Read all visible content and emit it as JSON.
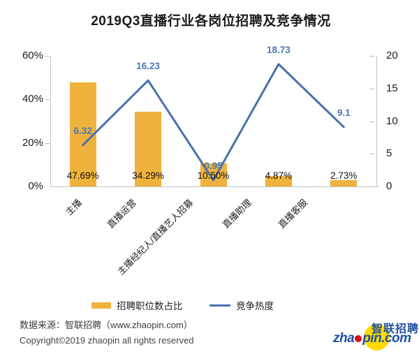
{
  "chart_data": {
    "type": "bar+line combo",
    "title": "2019Q3直播行业各岗位招聘及竞争情况",
    "categories": [
      "主播",
      "直播运营",
      "主播经纪人/直播艺人招募",
      "直播助理",
      "直播客服"
    ],
    "series": [
      {
        "name": "招聘职位数占比",
        "type": "bar",
        "axis": "left",
        "values": [
          47.69,
          34.29,
          10.5,
          4.87,
          2.73
        ],
        "labels": [
          "47.69%",
          "34.29%",
          "10.50%",
          "4.87%",
          "2.73%"
        ],
        "color": "#EFB23C"
      },
      {
        "name": "竞争热度",
        "type": "line",
        "axis": "right",
        "values": [
          6.32,
          16.23,
          0.95,
          18.73,
          9.1
        ],
        "labels": [
          "6.32",
          "16.23",
          "0.95",
          "18.73",
          "9.1"
        ],
        "color": "#4A70AC",
        "label_color": "#4A78B5"
      }
    ],
    "left_axis": {
      "ticks": [
        "0%",
        "20%",
        "40%",
        "60%"
      ],
      "min": 0,
      "max": 60
    },
    "right_axis": {
      "ticks": [
        "0",
        "5",
        "10",
        "15",
        "20"
      ],
      "min": 0,
      "max": 20
    },
    "grid": false,
    "legend_position": "bottom"
  },
  "footer": {
    "source_line": "数据来源：智联招聘（www.zhaopin.com）",
    "copyright_line": "Copyright©2019 zhaopin all rights reserved"
  },
  "logo": {
    "cn": "智联招聘",
    "en_pre": "zha",
    "en_post": "pin.com",
    "blue": "#1d4fa3",
    "yellow": "#ffd900",
    "red": "#d6081b"
  }
}
